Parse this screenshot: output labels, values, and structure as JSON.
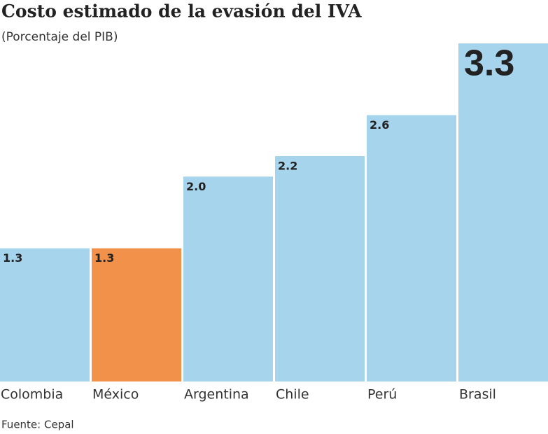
{
  "chart_data": {
    "type": "bar",
    "title": "Costo estimado de la evasión del IVA",
    "subtitle": "(Porcentaje del PIB)",
    "categories": [
      "Colombia",
      "México",
      "Argentina",
      "Chile",
      "Perú",
      "Brasil"
    ],
    "values": [
      1.3,
      1.3,
      2.0,
      2.2,
      2.6,
      3.3
    ],
    "value_labels": [
      "1.3",
      "1.3",
      "2.0",
      "2.2",
      "2.6",
      "3.3"
    ],
    "colors": [
      "#a6d4ec",
      "#f2914a",
      "#a6d4ec",
      "#a6d4ec",
      "#a6d4ec",
      "#a6d4ec"
    ],
    "source": "Fuente: Cepal"
  }
}
